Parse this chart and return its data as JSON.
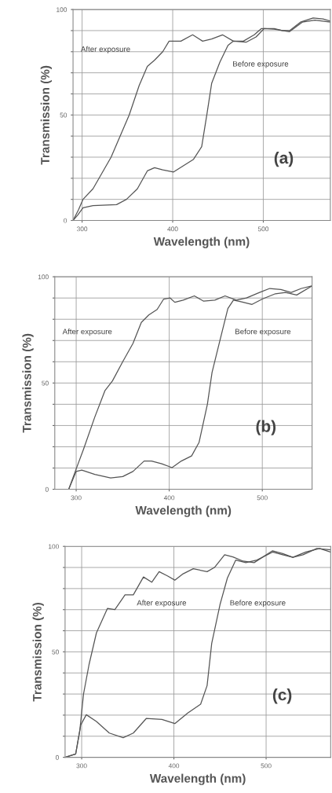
{
  "chart_data": [
    {
      "type": "line",
      "xlabel": "Wavelength (nm)",
      "ylabel": "Transmission (%)",
      "xlim": [
        290,
        574
      ],
      "ylim": [
        0,
        100
      ],
      "xticks": [
        300,
        400,
        500
      ],
      "yticks": [
        0,
        {
          "value": 10,
          "label": null
        },
        {
          "value": 20,
          "label": null
        },
        {
          "value": 30,
          "label": null
        },
        {
          "value": 40,
          "label": null
        },
        50,
        {
          "value": 60,
          "label": null
        },
        {
          "value": 70,
          "label": null
        },
        {
          "value": 80,
          "label": null
        },
        {
          "value": 90,
          "label": null
        },
        100
      ],
      "grid": true,
      "annotations": [
        "After exposure",
        "Before exposure",
        "(a)"
      ],
      "series": [
        {
          "color": "#555555",
          "x": [
            290,
            296,
            301,
            312,
            332,
            352,
            363,
            372,
            380,
            389,
            396,
            403,
            409,
            422,
            433,
            443,
            455,
            467,
            478,
            490,
            498,
            512,
            521,
            529,
            541,
            555,
            566,
            574
          ],
          "values": [
            0,
            5,
            10,
            15,
            30,
            50,
            64,
            73,
            76,
            80,
            85,
            85,
            85,
            88,
            85,
            86,
            88,
            85,
            85,
            88,
            91,
            91,
            90,
            90,
            94,
            96,
            95.5,
            94.5
          ]
        },
        {
          "color": "#555555",
          "x": [
            290,
            295,
            301,
            312,
            338,
            349,
            361,
            372,
            380,
            389,
            401,
            412,
            423,
            432,
            438,
            443,
            452,
            461,
            467,
            481,
            492,
            501,
            512,
            529,
            543,
            557,
            574
          ],
          "values": [
            0,
            2.5,
            6,
            7,
            7.5,
            10,
            15,
            23.5,
            25,
            24,
            23,
            26,
            29,
            35,
            51,
            65,
            75,
            83,
            85,
            84.5,
            87,
            91,
            90.7,
            89.5,
            94,
            95,
            94
          ]
        }
      ]
    },
    {
      "type": "line",
      "xlabel": "Wavelength (nm)",
      "ylabel": "Transmission (%)",
      "xlim": [
        277,
        553.5
      ],
      "ylim": [
        0,
        100
      ],
      "xticks": [
        300,
        400,
        500
      ],
      "yticks": [
        0,
        {
          "value": 10,
          "label": null
        },
        {
          "value": 20,
          "label": null
        },
        {
          "value": 30,
          "label": null
        },
        {
          "value": 40,
          "label": null
        },
        50,
        {
          "value": 60,
          "label": null
        },
        {
          "value": 70,
          "label": null
        },
        {
          "value": 80,
          "label": null
        },
        {
          "value": 90,
          "label": null
        },
        100
      ],
      "grid": true,
      "annotations": [
        "After exposure",
        "Before exposure",
        "(b)"
      ],
      "series": [
        {
          "color": "#555555",
          "x": [
            277,
            292,
            300,
            308,
            320,
            331,
            339,
            350,
            361,
            370,
            378,
            387,
            394,
            401,
            406,
            415,
            427,
            437,
            449,
            460,
            472,
            483,
            497,
            508,
            520,
            531,
            542,
            553.5
          ],
          "values": [
            0,
            0,
            9.6,
            19,
            34,
            46.5,
            51,
            60,
            68.6,
            78.5,
            82,
            84.6,
            89.5,
            90,
            88,
            89,
            91,
            88.5,
            89,
            91,
            89,
            90,
            92.6,
            94.5,
            94,
            92.6,
            94.5,
            95.7
          ]
        },
        {
          "color": "#555555",
          "x": [
            277,
            292,
            300,
            306,
            320,
            337,
            350,
            361,
            373,
            381,
            392,
            403,
            413,
            424,
            432,
            441,
            446,
            455,
            463,
            469,
            477,
            489,
            500,
            514,
            525,
            537,
            553.5
          ],
          "values": [
            0,
            0,
            8.4,
            9,
            7,
            5.3,
            6,
            8.4,
            13.3,
            13.3,
            12,
            10.2,
            13.3,
            15.7,
            22,
            40,
            55,
            71,
            85,
            89,
            88.3,
            87,
            89.5,
            92,
            92.6,
            91.4,
            95.7
          ]
        }
      ]
    },
    {
      "type": "line",
      "xlabel": "Wavelength (nm)",
      "ylabel": "Transmission (%)",
      "xlim": [
        282,
        570
      ],
      "ylim": [
        0,
        100
      ],
      "xticks": [
        300,
        400,
        500
      ],
      "yticks": [
        0,
        {
          "value": 10,
          "label": null
        },
        {
          "value": 20,
          "label": null
        },
        {
          "value": 30,
          "label": null
        },
        {
          "value": 40,
          "label": null
        },
        50,
        {
          "value": 60,
          "label": null
        },
        {
          "value": 70,
          "label": null
        },
        {
          "value": 80,
          "label": null
        },
        {
          "value": 90,
          "label": null
        },
        100
      ],
      "grid": true,
      "annotations": [
        "After exposure",
        "Before exposure",
        "(c)"
      ],
      "series": [
        {
          "color": "#555555",
          "x": [
            282,
            293.5,
            298,
            302,
            308,
            316,
            328,
            336,
            347,
            356,
            367,
            376,
            384,
            393,
            401,
            410,
            421,
            436,
            444,
            455,
            464,
            475,
            487,
            507,
            518,
            529,
            543,
            558,
            570
          ],
          "values": [
            0,
            1.6,
            12.8,
            30,
            44,
            59,
            70.6,
            70,
            77,
            77,
            85.5,
            83,
            88,
            86,
            84,
            87,
            89.4,
            88,
            90,
            96,
            95,
            93,
            92.3,
            97.9,
            96.6,
            94.8,
            97.3,
            99,
            97.3
          ]
        },
        {
          "color": "#555555",
          "x": [
            282,
            293.5,
            299,
            305,
            316,
            330,
            345,
            356,
            370,
            387,
            401,
            415,
            429,
            436,
            441,
            450,
            458,
            467,
            478,
            490,
            507,
            518,
            529,
            540,
            555,
            570
          ],
          "values": [
            0,
            1.6,
            15.3,
            20.2,
            17,
            11.5,
            9.3,
            11.5,
            18.4,
            18,
            16,
            21,
            25.2,
            34,
            54,
            72.4,
            85,
            93.5,
            92.3,
            93.5,
            97.3,
            96,
            94.8,
            96,
            99,
            98.4
          ]
        }
      ]
    }
  ]
}
